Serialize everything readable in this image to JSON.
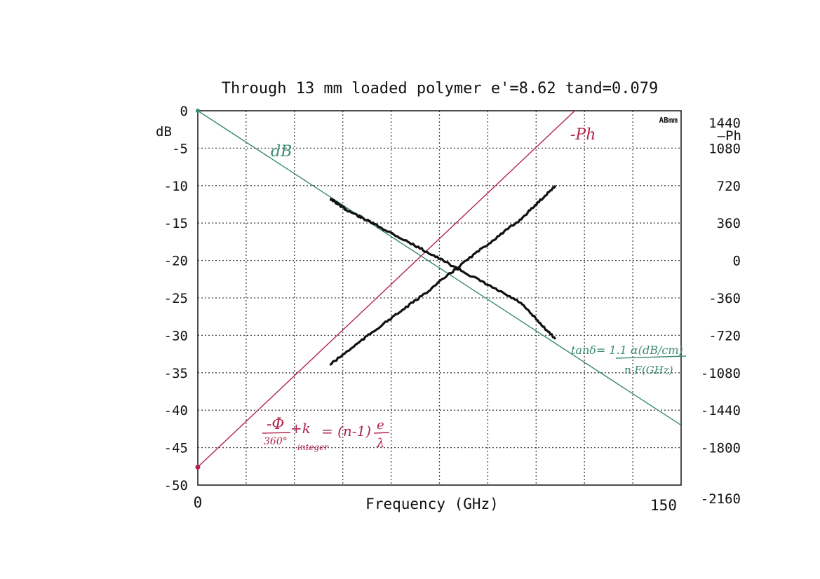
{
  "chart_data": {
    "type": "line",
    "title": "Through 13 mm loaded polymer e'=8.62 tand=0.079",
    "xlabel": "Frequency (GHz)",
    "xlim": [
      0,
      150
    ],
    "x_tick_labels": [
      "0",
      "150"
    ],
    "y_left": {
      "label": "dB",
      "ylim": [
        -50,
        0
      ],
      "tick_values": [
        0,
        -5,
        -10,
        -15,
        -20,
        -25,
        -30,
        -35,
        -40,
        -45,
        -50
      ],
      "tick_labels": [
        "0",
        "-5",
        "-10",
        "-15",
        "-20",
        "-25",
        "-30",
        "-35",
        "-40",
        "-45",
        "-50"
      ]
    },
    "y_right": {
      "label": "—Ph",
      "ylim": [
        -2160,
        1440
      ],
      "tick_values": [
        1440,
        1080,
        720,
        360,
        0,
        -360,
        -720,
        -1080,
        -1440,
        -1800,
        -2160
      ],
      "tick_labels": [
        "1440",
        "1080",
        "720",
        "360",
        "0",
        "-360",
        "-720",
        "-1080",
        "-1440",
        "-1800",
        "-2160"
      ]
    },
    "corner_label": "ABmm",
    "grid": true,
    "series": [
      {
        "axis": "left",
        "color": "#111111",
        "x": [
          41,
          46,
          55,
          70,
          85,
          100,
          111
        ],
        "y": [
          -11.7,
          -13.2,
          -15.2,
          -18.6,
          -22.1,
          -25.6,
          -30.5
        ]
      },
      {
        "axis": "right",
        "color": "#111111",
        "x": [
          41,
          55,
          70,
          85,
          100,
          111
        ],
        "y": [
          -1003,
          -670,
          -330,
          40,
          390,
          720
        ]
      },
      {
        "axis": "left",
        "color": "#3a8a70",
        "x": [
          0,
          150
        ],
        "y": [
          0,
          -42
        ]
      },
      {
        "axis": "right",
        "color": "#b0244a",
        "x": [
          0,
          117
        ],
        "y": [
          -1987,
          1440
        ]
      }
    ],
    "annotations": [
      {
        "text": "dB",
        "color": "#3a8a70"
      },
      {
        "text": "-Ph",
        "color": "#b0244a"
      },
      {
        "text": "tanδ= 1.1 α(dB/cm)",
        "color": "#3a8a70"
      },
      {
        "text": "n F(GHz)",
        "color": "#3a8a70"
      },
      {
        "text": "-Φ",
        "color": "#b0244a"
      },
      {
        "text": "360°",
        "color": "#b0244a"
      },
      {
        "text": "+k",
        "color": "#b0244a"
      },
      {
        "text": "integer",
        "color": "#b0244a"
      },
      {
        "text": "= (n-1)",
        "color": "#b0244a"
      },
      {
        "text": "e",
        "color": "#b0244a"
      },
      {
        "text": "λ",
        "color": "#b0244a"
      }
    ]
  }
}
